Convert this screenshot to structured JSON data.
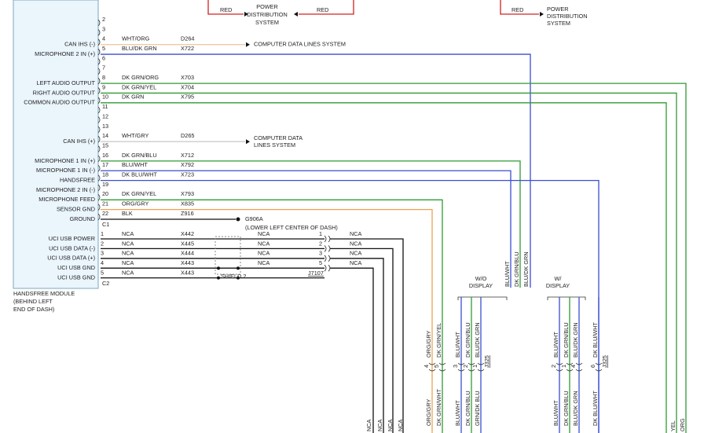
{
  "power_left": {
    "wire_in": "RED",
    "wire_out": "RED",
    "label": [
      "POWER",
      "DISTRIBUTION",
      "SYSTEM"
    ]
  },
  "power_right": {
    "wire": "RED",
    "label": [
      "POWER",
      "DISTRIBUTION",
      "SYSTEM"
    ]
  },
  "module": {
    "label": [
      "HANDSFREE MODULE",
      "(BEHIND LEFT",
      "END OF DASH)"
    ],
    "c1": "C1",
    "c2": "C2"
  },
  "c1_pins": [
    {
      "number": "2"
    },
    {
      "number": "3"
    },
    {
      "number": "4",
      "function": "CAN IHS (-)",
      "wire": "WHT/ORG",
      "circuit": "D264",
      "color": "#f3c9a2",
      "destination": [
        "COMPUTER DATA LINES SYSTEM"
      ]
    },
    {
      "number": "5",
      "function": "MICROPHONE 2 IN (+)",
      "wire": "BLU/DK GRN",
      "circuit": "X722",
      "color": "#3a4fd0"
    },
    {
      "number": "6"
    },
    {
      "number": "7"
    },
    {
      "number": "8",
      "function": "LEFT AUDIO OUTPUT",
      "wire": "DK GRN/ORG",
      "circuit": "X703",
      "color": "#2f9a32"
    },
    {
      "number": "9",
      "function": "RIGHT AUDIO OUTPUT",
      "wire": "DK GRN/YEL",
      "circuit": "X704",
      "color": "#2f9a32"
    },
    {
      "number": "10",
      "function": "COMMON AUDIO OUTPUT",
      "wire": "DK GRN",
      "circuit": "X795",
      "color": "#2f9a32"
    },
    {
      "number": "11"
    },
    {
      "number": "12"
    },
    {
      "number": "13"
    },
    {
      "number": "14",
      "function": "CAN IHS (+)",
      "wire": "WHT/GRY",
      "circuit": "D265",
      "color": "#cccccc",
      "destination": [
        "COMPUTER DATA",
        "LINES SYSTEM"
      ]
    },
    {
      "number": "15"
    },
    {
      "number": "16",
      "function": "MICROPHONE 1 IN (+)",
      "wire": "DK GRN/BLU",
      "circuit": "X712",
      "color": "#2f9a32"
    },
    {
      "number": "17",
      "function": "MICROPHONE 1 IN (-)",
      "wire": "BLU/WHT",
      "circuit": "X792",
      "color": "#3a4fd0"
    },
    {
      "number": "18",
      "function": "HANDSFREE",
      "wire": "DK BLU/WHT",
      "circuit": "X723",
      "color": "#3a4fd0"
    },
    {
      "number": "19",
      "function": "MICROPHONE 2 IN (-)"
    },
    {
      "number": "20",
      "function": "MICROPHONE FEED",
      "wire": "DK GRN/YEL",
      "circuit": "X793",
      "color": "#2f9a32"
    },
    {
      "number": "21",
      "function": "SENSOR GND",
      "wire": "ORG/GRY",
      "circuit": "X835",
      "color": "#f0a050"
    },
    {
      "number": "22",
      "function": "GROUND",
      "wire": "BLK",
      "circuit": "Z916",
      "color": "#111111"
    }
  ],
  "ground": {
    "id": "G906A",
    "location": "(LOWER LEFT CENTER OF DASH)"
  },
  "c2_pins": [
    {
      "number": "1",
      "function": "UCI USB POWER",
      "wire": "NCA",
      "circuit": "X442",
      "mid_wire": "NCA",
      "far_pin": "1",
      "far_wire": "NCA"
    },
    {
      "number": "2",
      "function": "UCI USB DATA (-)",
      "wire": "NCA",
      "circuit": "X445",
      "mid_wire": "NCA",
      "far_pin": "2",
      "far_wire": "NCA"
    },
    {
      "number": "3",
      "function": "UCI USB DATA (+)",
      "wire": "NCA",
      "circuit": "X444",
      "mid_wire": "NCA",
      "far_pin": "3",
      "far_wire": "NCA"
    },
    {
      "number": "4",
      "function": "UCI USB GND",
      "wire": "NCA",
      "circuit": "X443",
      "mid_wire": "NCA",
      "far_pin": "5",
      "far_wire": "NCA"
    },
    {
      "number": "5",
      "function": "UCI USB GND",
      "wire": "NCA",
      "circuit": "X443"
    }
  ],
  "shield": "SHIELD 2",
  "inline_connector": "J7107",
  "harness_ends": [
    "NCA",
    "NCA",
    "NCA",
    "NCA"
  ],
  "variants": {
    "without": {
      "label": [
        "W/O",
        "DISPLAY"
      ],
      "wires": [
        "BLU/WHT",
        "DK GRN/BLU",
        "BLU/DK GRN"
      ]
    },
    "with": {
      "label": [
        "W/",
        "DISPLAY"
      ]
    }
  },
  "connectors": [
    {
      "pins": [
        "4",
        "5"
      ],
      "top": [
        "ORG/GRY",
        "DK GRN/YEL"
      ],
      "bottom": [
        "ORG/GRY",
        "DK GRN/WHT"
      ],
      "colors": [
        "#f0a050",
        "#2f9a32"
      ]
    },
    {
      "pins": [
        "3",
        "2",
        "1"
      ],
      "top": [
        "BLU/WHT",
        "DK GRN/BLU",
        "BLU/DK GRN"
      ],
      "bottom": [
        "BLU/WHT",
        "DK GRN/BLU",
        "GRN/DK BLU"
      ],
      "colors": [
        "#3a4fd0",
        "#2f9a32",
        "#3a4fd0"
      ],
      "id": "J325"
    },
    {
      "pins": [
        "2",
        "1",
        "4",
        "6"
      ],
      "top": [
        "BLU/WHT",
        "DK GRN/BLU",
        "BLU/DK GRN",
        "DK BLU/WHT"
      ],
      "bottom": [
        "BLU/WHT",
        "DK GRN/BLU",
        "BLU/DK GRN",
        "DK BLU/WHT"
      ],
      "colors": [
        "#3a4fd0",
        "#2f9a32",
        "#3a4fd0",
        "#3a4fd0"
      ],
      "id": "J325"
    }
  ],
  "edge_labels": [
    "YEL",
    "ORG"
  ]
}
